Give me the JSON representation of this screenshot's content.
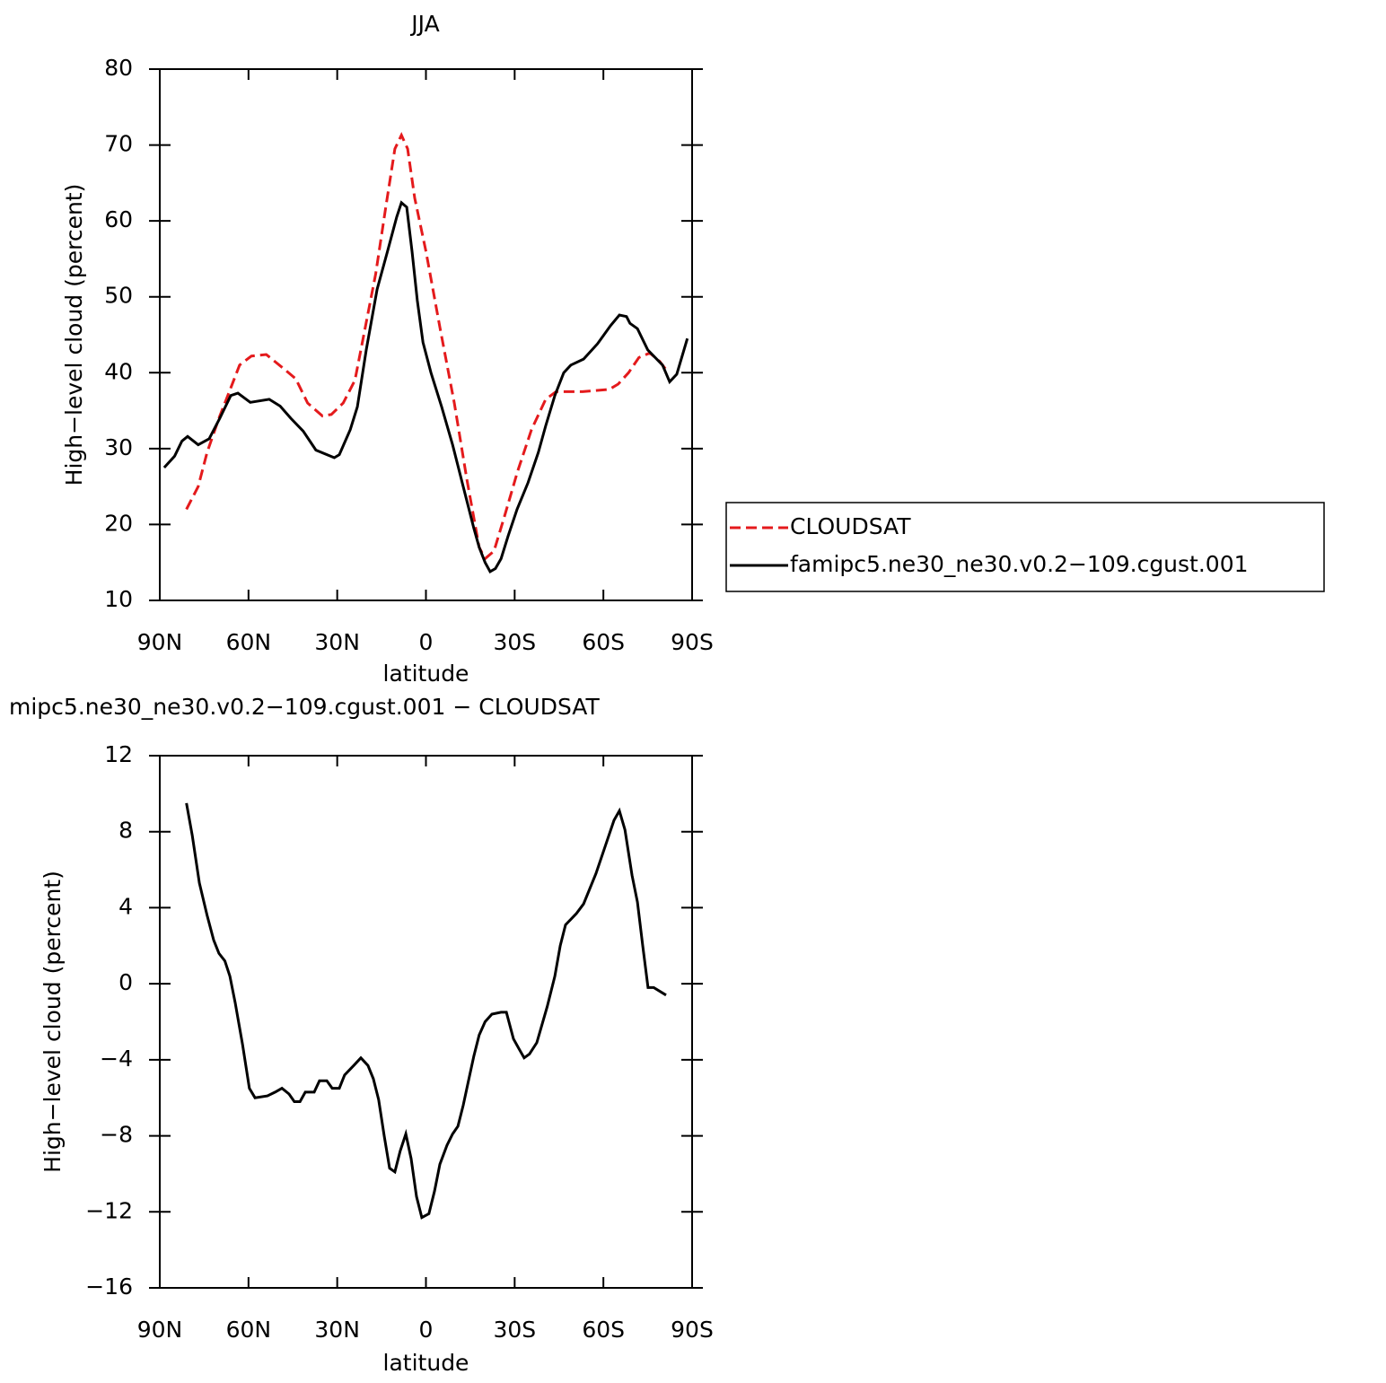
{
  "chart_data": [
    {
      "type": "line",
      "title": "JJA",
      "xlabel": "latitude",
      "ylabel": "High−level cloud (percent)",
      "xlim": [
        90,
        -90
      ],
      "xticks": [
        {
          "value": 90,
          "label": "90N"
        },
        {
          "value": 60,
          "label": "60N"
        },
        {
          "value": 30,
          "label": "30N"
        },
        0,
        {
          "value": -30,
          "label": "30S"
        },
        {
          "value": -60,
          "label": "60S"
        },
        {
          "value": -90,
          "label": "90S"
        }
      ],
      "ylim": [
        10,
        80
      ],
      "yticks": [
        10,
        20,
        30,
        40,
        50,
        60,
        70,
        80
      ],
      "legend": "right",
      "series": [
        {
          "name": "CLOUDSAT",
          "color": "#e41a1c",
          "dash": true,
          "x": [
            81,
            77,
            74,
            70,
            66,
            63,
            59,
            54,
            48,
            44,
            40,
            35,
            32,
            28,
            24,
            21,
            17,
            13.5,
            10.5,
            8.3,
            6.2,
            3.8,
            0,
            -4.7,
            -9.6,
            -13.8,
            -18,
            -20,
            -23,
            -26.5,
            -31,
            -35.7,
            -40.5,
            -44,
            -53,
            -62,
            -65,
            -68.5,
            -72,
            -75.7,
            -79,
            -82
          ],
          "values": [
            22,
            25,
            29.5,
            34,
            38,
            41,
            42.2,
            42.4,
            40.5,
            39.2,
            36,
            34.3,
            34.5,
            36,
            39,
            45,
            53,
            62,
            69.5,
            71.3,
            69.5,
            63,
            56,
            46,
            36,
            26,
            17,
            15.5,
            16.5,
            21,
            27,
            32.5,
            36.5,
            37.5,
            37.5,
            37.8,
            38.5,
            40,
            42,
            42.6,
            41.5,
            40
          ]
        },
        {
          "name": "famipc5.ne30_ne30.v0.2−109.cgust.001",
          "color": "#000000",
          "dash": false,
          "x": [
            88.5,
            85,
            82.5,
            80.6,
            77,
            73.3,
            69.7,
            66,
            63.6,
            59.4,
            53,
            49.3,
            45.7,
            41.5,
            37.2,
            31,
            29.3,
            25.6,
            23.2,
            20.2,
            16.5,
            13,
            9.9,
            8.3,
            6.5,
            4.7,
            2.9,
            1,
            -1.7,
            -5.3,
            -9,
            -12.6,
            -16.2,
            -18,
            -20,
            -21.7,
            -23.5,
            -25.4,
            -27.8,
            -30.8,
            -34.5,
            -38,
            -40.5,
            -43.6,
            -46.6,
            -49,
            -53.3,
            -58,
            -62.4,
            -65.4,
            -67.8,
            -69,
            -71.5,
            -75,
            -80,
            -82.4,
            -84.8,
            -88.4
          ],
          "values": [
            27.5,
            29,
            31,
            31.6,
            30.5,
            31.3,
            34,
            37,
            37.3,
            36.1,
            36.5,
            35.6,
            34,
            32.3,
            29.8,
            28.8,
            29.2,
            32.5,
            35.5,
            43,
            51,
            56,
            60.5,
            62.4,
            61.8,
            56,
            49.5,
            44,
            40,
            35.5,
            30.5,
            25,
            19.5,
            17,
            15,
            13.8,
            14.2,
            15.5,
            18.5,
            22,
            25.5,
            29.5,
            33,
            37,
            40,
            41,
            41.8,
            43.8,
            46.2,
            47.6,
            47.4,
            46.5,
            45.8,
            43,
            41,
            38.8,
            39.8,
            44.5
          ]
        }
      ]
    },
    {
      "type": "line",
      "title": "mipc5.ne30_ne30.v0.2−109.cgust.001 − CLOUDSAT",
      "xlabel": "latitude",
      "ylabel": "High−level cloud (percent)",
      "xlim": [
        90,
        -90
      ],
      "xticks": [
        {
          "value": 90,
          "label": "90N"
        },
        {
          "value": 60,
          "label": "60N"
        },
        {
          "value": 30,
          "label": "30N"
        },
        0,
        {
          "value": -30,
          "label": "30S"
        },
        {
          "value": -60,
          "label": "60S"
        },
        {
          "value": -90,
          "label": "90S"
        }
      ],
      "ylim": [
        -16,
        12
      ],
      "yticks": [
        {
          "value": -16,
          "label": "−16"
        },
        {
          "value": -12,
          "label": "−12"
        },
        {
          "value": -8,
          "label": "−8"
        },
        {
          "value": -4,
          "label": "−4"
        },
        0,
        4,
        8,
        12
      ],
      "series": [
        {
          "color": "#000000",
          "dash": false,
          "x": [
            81,
            79,
            76.6,
            74,
            71.8,
            70,
            68,
            66.3,
            64.5,
            62,
            59.7,
            57.8,
            53.6,
            51,
            48.7,
            46.3,
            44.5,
            42.6,
            40.8,
            37.8,
            36,
            33.5,
            31.7,
            29.3,
            27.5,
            24.4,
            22,
            19.6,
            17.8,
            16,
            14.1,
            12.3,
            10.5,
            8.7,
            6.8,
            5,
            3.2,
            1.4,
            -1,
            -2.9,
            -4.7,
            -7.1,
            -9,
            -10.8,
            -12.6,
            -14.4,
            -16.2,
            -18,
            -20,
            -22.3,
            -25.4,
            -27.2,
            -29.6,
            -31.4,
            -33.2,
            -35,
            -37.5,
            -41,
            -43.6,
            -45.4,
            -47.2,
            -50.9,
            -53.3,
            -57.5,
            -61.2,
            -63.6,
            -65.4,
            -67.3,
            -69.7,
            -71.5,
            -73.3,
            -75.1,
            -77,
            -81.2
          ],
          "values": [
            9.5,
            7.8,
            5.3,
            3.6,
            2.3,
            1.6,
            1.2,
            0.4,
            -1,
            -3.2,
            -5.5,
            -6,
            -5.9,
            -5.7,
            -5.5,
            -5.8,
            -6.2,
            -6.2,
            -5.7,
            -5.7,
            -5.1,
            -5.1,
            -5.5,
            -5.5,
            -4.8,
            -4.3,
            -3.9,
            -4.3,
            -5,
            -6.1,
            -8,
            -9.7,
            -9.9,
            -8.8,
            -7.9,
            -9.2,
            -11.2,
            -12.3,
            -12.1,
            -10.9,
            -9.5,
            -8.5,
            -7.9,
            -7.5,
            -6.4,
            -5.1,
            -3.8,
            -2.7,
            -2,
            -1.6,
            -1.5,
            -1.5,
            -2.9,
            -3.4,
            -3.9,
            -3.7,
            -3.1,
            -1.2,
            0.4,
            2,
            3.1,
            3.7,
            4.2,
            5.8,
            7.5,
            8.6,
            9.1,
            8.1,
            5.7,
            4.3,
            2,
            -0.2,
            -0.2,
            -0.6
          ]
        }
      ]
    }
  ]
}
